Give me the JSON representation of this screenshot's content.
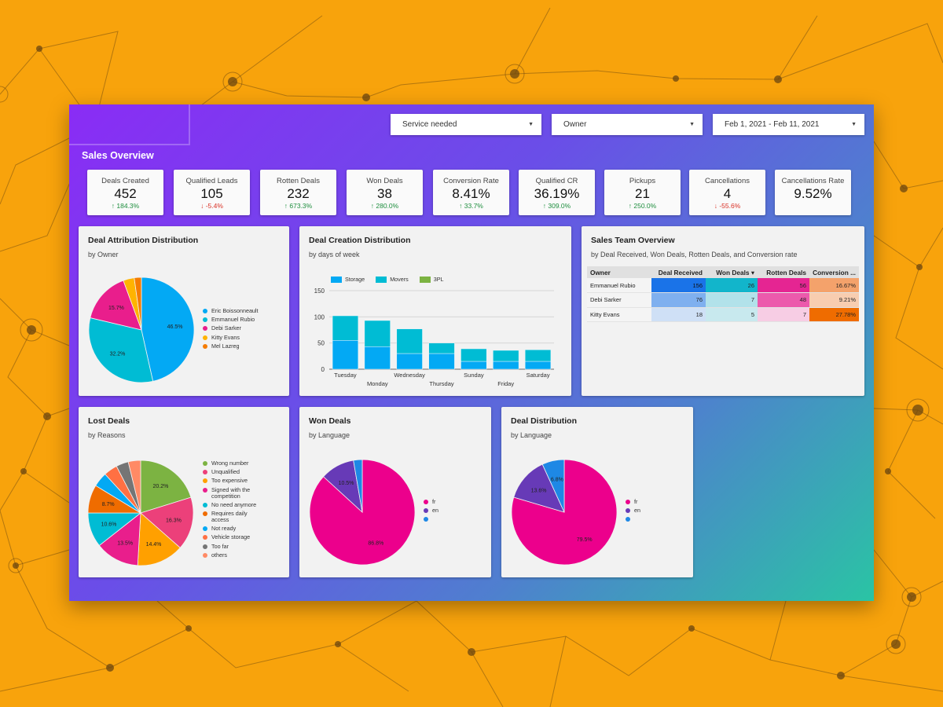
{
  "filters": {
    "service": "Service needed",
    "owner": "Owner",
    "date_range": "Feb 1, 2021 - Feb 11, 2021"
  },
  "page_title": "Sales Overview",
  "kpis": [
    {
      "label": "Deals Created",
      "value": "452",
      "delta": "184.3%",
      "direction": "up"
    },
    {
      "label": "Qualified Leads",
      "value": "105",
      "delta": "-5.4%",
      "direction": "down"
    },
    {
      "label": "Rotten Deals",
      "value": "232",
      "delta": "673.3%",
      "direction": "up"
    },
    {
      "label": "Won Deals",
      "value": "38",
      "delta": "280.0%",
      "direction": "up"
    },
    {
      "label": "Conversion Rate",
      "value": "8.41%",
      "delta": "33.7%",
      "direction": "up"
    },
    {
      "label": "Qualified CR",
      "value": "36.19%",
      "delta": "309.0%",
      "direction": "up"
    },
    {
      "label": "Pickups",
      "value": "21",
      "delta": "250.0%",
      "direction": "up"
    },
    {
      "label": "Cancellations",
      "value": "4",
      "delta": "-55.6%",
      "direction": "down"
    },
    {
      "label": "Cancellations Rate",
      "value": "9.52%",
      "delta": "",
      "direction": ""
    }
  ],
  "cards": {
    "attribution": {
      "title": "Deal Attribution Distribution",
      "subtitle": "by Owner"
    },
    "creation": {
      "title": "Deal Creation Distribution",
      "subtitle": "by days of week"
    },
    "team": {
      "title": "Sales Team Overview",
      "subtitle": "by Deal Received, Won Deals, Rotten Deals, and Conversion rate"
    },
    "lost": {
      "title": "Lost Deals",
      "subtitle": "by Reasons"
    },
    "won": {
      "title": "Won Deals",
      "subtitle": "by Language"
    },
    "distribution": {
      "title": "Deal Distribution",
      "subtitle": "by Language"
    }
  },
  "team_table": {
    "headers": [
      "Owner",
      "Deal Received",
      "Won Deals",
      "Rotten Deals",
      "Conversion ..."
    ],
    "sort_indicator": "▾",
    "rows": [
      {
        "owner": "Emmanuel Rubio",
        "received": "156",
        "won": "26",
        "rotten": "56",
        "conversion": "16.67%"
      },
      {
        "owner": "Debi Sarker",
        "received": "76",
        "won": "7",
        "rotten": "48",
        "conversion": "9.21%"
      },
      {
        "owner": "Kitty Evans",
        "received": "18",
        "won": "5",
        "rotten": "7",
        "conversion": "27.78%"
      }
    ]
  },
  "chart_data": [
    {
      "type": "pie",
      "id": "attribution",
      "title": "Deal Attribution Distribution",
      "labels": [
        "Eric Boissonneault",
        "Emmanuel Rubio",
        "Debi Sarker",
        "Kitty Evans",
        "Mel Lazreg"
      ],
      "values": [
        46.5,
        32.2,
        15.7,
        3.4,
        2.2
      ],
      "slice_labels": [
        "46.5%",
        "32.2%",
        "15.7%",
        "",
        ""
      ],
      "colors": [
        "#03a9f4",
        "#00bcd4",
        "#e91e8c",
        "#ffb300",
        "#f57c00"
      ]
    },
    {
      "type": "bar",
      "id": "creation",
      "stacked": true,
      "title": "Deal Creation Distribution",
      "categories": [
        "Tuesday",
        "Monday",
        "Wednesday",
        "Thursday",
        "Sunday",
        "Friday",
        "Saturday"
      ],
      "series": [
        {
          "name": "Storage",
          "values": [
            55,
            43,
            30,
            30,
            15,
            15,
            15
          ],
          "color": "#03a9f4"
        },
        {
          "name": "Movers",
          "values": [
            47,
            50,
            47,
            20,
            24,
            21,
            22
          ],
          "color": "#00bcd4"
        },
        {
          "name": "3PL",
          "values": [
            0,
            0,
            0,
            0,
            0,
            0,
            0
          ],
          "color": "#7cb342"
        }
      ],
      "ylim": [
        0,
        150
      ],
      "yticks": [
        0,
        50,
        100,
        150
      ]
    },
    {
      "type": "pie",
      "id": "lost",
      "title": "Lost Deals",
      "labels": [
        "Wrong number",
        "Unqualified",
        "Too expensive",
        "Signed with the competition",
        "No need anymore",
        "Requires daily access",
        "Not ready",
        "Vehicle storage",
        "Too far",
        "others"
      ],
      "values": [
        20.2,
        16.3,
        14.4,
        13.5,
        10.6,
        8.7,
        4.5,
        4.2,
        3.8,
        3.8
      ],
      "slice_labels": [
        "20.2%",
        "16.3%",
        "14.4%",
        "13.5%",
        "10.6%",
        "8.7%",
        "",
        "",
        "",
        ""
      ],
      "colors": [
        "#7cb342",
        "#ec407a",
        "#ffa000",
        "#e91e8c",
        "#00bcd4",
        "#ef6c00",
        "#03a9f4",
        "#ff7043",
        "#757575",
        "#ff8a65"
      ]
    },
    {
      "type": "pie",
      "id": "won",
      "title": "Won Deals",
      "labels": [
        "fr",
        "en",
        ""
      ],
      "values": [
        86.8,
        10.5,
        2.7
      ],
      "slice_labels": [
        "86.8%",
        "10.5%",
        ""
      ],
      "colors": [
        "#ec008c",
        "#673ab7",
        "#1e88e5"
      ]
    },
    {
      "type": "pie",
      "id": "distribution",
      "title": "Deal Distribution",
      "labels": [
        "fr",
        "en",
        ""
      ],
      "values": [
        79.5,
        13.6,
        6.8
      ],
      "slice_labels": [
        "79.5%",
        "13.6%",
        "6.8%"
      ],
      "colors": [
        "#ec008c",
        "#673ab7",
        "#1e88e5"
      ]
    }
  ]
}
